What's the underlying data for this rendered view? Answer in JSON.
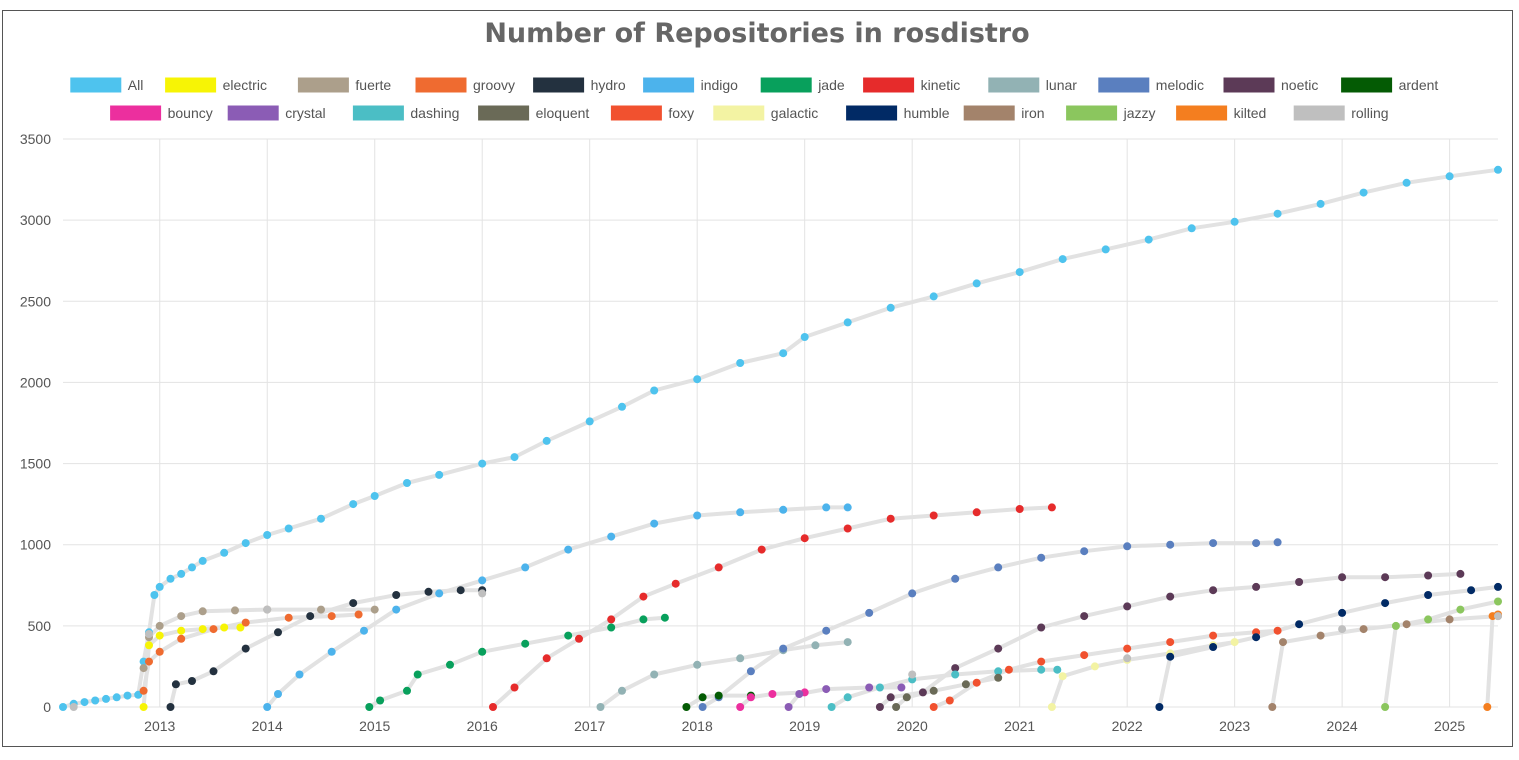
{
  "chart_data": {
    "type": "scatter",
    "title": "Number of Repositories in rosdistro",
    "xlabel": "",
    "ylabel": "",
    "x_ticks": [
      "2013",
      "2014",
      "2015",
      "2016",
      "2017",
      "2018",
      "2019",
      "2020",
      "2021",
      "2022",
      "2023",
      "2024",
      "2025"
    ],
    "y_ticks": [
      0,
      500,
      1000,
      1500,
      2000,
      2500,
      3000,
      3500
    ],
    "xlim": [
      2012.1,
      2025.45
    ],
    "ylim": [
      0,
      3500
    ],
    "grid": true,
    "legend_position": "top",
    "series": [
      {
        "name": "All",
        "color": "#4ec3ee",
        "points": [
          [
            2012.1,
            0
          ],
          [
            2012.2,
            20
          ],
          [
            2012.3,
            30
          ],
          [
            2012.4,
            40
          ],
          [
            2012.5,
            50
          ],
          [
            2012.6,
            60
          ],
          [
            2012.7,
            70
          ],
          [
            2012.8,
            75
          ],
          [
            2012.85,
            280
          ],
          [
            2012.9,
            460
          ],
          [
            2012.95,
            690
          ],
          [
            2013.0,
            740
          ],
          [
            2013.1,
            790
          ],
          [
            2013.2,
            820
          ],
          [
            2013.3,
            860
          ],
          [
            2013.4,
            900
          ],
          [
            2013.6,
            950
          ],
          [
            2013.8,
            1010
          ],
          [
            2014.0,
            1060
          ],
          [
            2014.2,
            1100
          ],
          [
            2014.5,
            1160
          ],
          [
            2014.8,
            1250
          ],
          [
            2015.0,
            1300
          ],
          [
            2015.3,
            1380
          ],
          [
            2015.6,
            1430
          ],
          [
            2016.0,
            1500
          ],
          [
            2016.3,
            1540
          ],
          [
            2016.6,
            1640
          ],
          [
            2017.0,
            1760
          ],
          [
            2017.3,
            1850
          ],
          [
            2017.6,
            1950
          ],
          [
            2018.0,
            2020
          ],
          [
            2018.4,
            2120
          ],
          [
            2018.8,
            2180
          ],
          [
            2019.0,
            2280
          ],
          [
            2019.4,
            2370
          ],
          [
            2019.8,
            2460
          ],
          [
            2020.2,
            2530
          ],
          [
            2020.6,
            2610
          ],
          [
            2021.0,
            2680
          ],
          [
            2021.4,
            2760
          ],
          [
            2021.8,
            2820
          ],
          [
            2022.2,
            2880
          ],
          [
            2022.6,
            2950
          ],
          [
            2023.0,
            2990
          ],
          [
            2023.4,
            3040
          ],
          [
            2023.8,
            3100
          ],
          [
            2024.2,
            3170
          ],
          [
            2024.6,
            3230
          ],
          [
            2025.0,
            3270
          ],
          [
            2025.45,
            3310
          ]
        ]
      },
      {
        "name": "electric",
        "color": "#f7f405",
        "points": [
          [
            2012.85,
            0
          ],
          [
            2012.9,
            380
          ],
          [
            2013.0,
            440
          ],
          [
            2013.2,
            470
          ],
          [
            2013.4,
            480
          ],
          [
            2013.6,
            490
          ],
          [
            2013.75,
            490
          ]
        ]
      },
      {
        "name": "fuerte",
        "color": "#ac9f8b",
        "points": [
          [
            2012.85,
            240
          ],
          [
            2012.9,
            430
          ],
          [
            2013.0,
            500
          ],
          [
            2013.2,
            560
          ],
          [
            2013.4,
            590
          ],
          [
            2013.7,
            595
          ],
          [
            2014.0,
            600
          ],
          [
            2014.5,
            600
          ],
          [
            2015.0,
            600
          ]
        ]
      },
      {
        "name": "groovy",
        "color": "#ef6b30",
        "points": [
          [
            2012.85,
            100
          ],
          [
            2012.9,
            280
          ],
          [
            2013.0,
            340
          ],
          [
            2013.2,
            420
          ],
          [
            2013.5,
            480
          ],
          [
            2013.8,
            520
          ],
          [
            2014.2,
            550
          ],
          [
            2014.6,
            560
          ],
          [
            2014.85,
            570
          ]
        ]
      },
      {
        "name": "hydro",
        "color": "#23313f",
        "points": [
          [
            2013.1,
            0
          ],
          [
            2013.15,
            140
          ],
          [
            2013.3,
            160
          ],
          [
            2013.5,
            220
          ],
          [
            2013.8,
            360
          ],
          [
            2014.1,
            460
          ],
          [
            2014.4,
            560
          ],
          [
            2014.8,
            640
          ],
          [
            2015.2,
            690
          ],
          [
            2015.5,
            710
          ],
          [
            2015.8,
            720
          ],
          [
            2016.0,
            720
          ]
        ]
      },
      {
        "name": "indigo",
        "color": "#4cb3ec",
        "points": [
          [
            2014.0,
            0
          ],
          [
            2014.1,
            80
          ],
          [
            2014.3,
            200
          ],
          [
            2014.6,
            340
          ],
          [
            2014.9,
            470
          ],
          [
            2015.2,
            600
          ],
          [
            2015.6,
            700
          ],
          [
            2016.0,
            780
          ],
          [
            2016.4,
            860
          ],
          [
            2016.8,
            970
          ],
          [
            2017.2,
            1050
          ],
          [
            2017.6,
            1130
          ],
          [
            2018.0,
            1180
          ],
          [
            2018.4,
            1200
          ],
          [
            2018.8,
            1215
          ],
          [
            2019.2,
            1230
          ],
          [
            2019.4,
            1230
          ]
        ]
      },
      {
        "name": "jade",
        "color": "#08a05c",
        "points": [
          [
            2014.95,
            0
          ],
          [
            2015.05,
            40
          ],
          [
            2015.3,
            100
          ],
          [
            2015.4,
            200
          ],
          [
            2015.7,
            260
          ],
          [
            2016.0,
            340
          ],
          [
            2016.4,
            390
          ],
          [
            2016.8,
            440
          ],
          [
            2017.2,
            490
          ],
          [
            2017.5,
            540
          ],
          [
            2017.7,
            550
          ]
        ]
      },
      {
        "name": "kinetic",
        "color": "#e62b2b",
        "points": [
          [
            2016.1,
            0
          ],
          [
            2016.3,
            120
          ],
          [
            2016.6,
            300
          ],
          [
            2016.9,
            420
          ],
          [
            2017.2,
            540
          ],
          [
            2017.5,
            680
          ],
          [
            2017.8,
            760
          ],
          [
            2018.2,
            860
          ],
          [
            2018.6,
            970
          ],
          [
            2019.0,
            1040
          ],
          [
            2019.4,
            1100
          ],
          [
            2019.8,
            1160
          ],
          [
            2020.2,
            1180
          ],
          [
            2020.6,
            1200
          ],
          [
            2021.0,
            1220
          ],
          [
            2021.3,
            1230
          ]
        ]
      },
      {
        "name": "lunar",
        "color": "#92b2b4",
        "points": [
          [
            2017.1,
            0
          ],
          [
            2017.3,
            100
          ],
          [
            2017.6,
            200
          ],
          [
            2018.0,
            260
          ],
          [
            2018.4,
            300
          ],
          [
            2018.8,
            350
          ],
          [
            2019.1,
            380
          ],
          [
            2019.4,
            400
          ]
        ]
      },
      {
        "name": "melodic",
        "color": "#5a7fbf",
        "points": [
          [
            2018.05,
            0
          ],
          [
            2018.2,
            60
          ],
          [
            2018.5,
            220
          ],
          [
            2018.8,
            360
          ],
          [
            2019.2,
            470
          ],
          [
            2019.6,
            580
          ],
          [
            2020.0,
            700
          ],
          [
            2020.4,
            790
          ],
          [
            2020.8,
            860
          ],
          [
            2021.2,
            920
          ],
          [
            2021.6,
            960
          ],
          [
            2022.0,
            990
          ],
          [
            2022.4,
            1000
          ],
          [
            2022.8,
            1010
          ],
          [
            2023.2,
            1010
          ],
          [
            2023.4,
            1015
          ]
        ]
      },
      {
        "name": "noetic",
        "color": "#5c3a57",
        "points": [
          [
            2019.7,
            0
          ],
          [
            2019.8,
            60
          ],
          [
            2020.1,
            90
          ],
          [
            2020.4,
            240
          ],
          [
            2020.8,
            360
          ],
          [
            2021.2,
            490
          ],
          [
            2021.6,
            560
          ],
          [
            2022.0,
            620
          ],
          [
            2022.4,
            680
          ],
          [
            2022.8,
            720
          ],
          [
            2023.2,
            740
          ],
          [
            2023.6,
            770
          ],
          [
            2024.0,
            800
          ],
          [
            2024.4,
            800
          ],
          [
            2024.8,
            810
          ],
          [
            2025.1,
            820
          ]
        ]
      },
      {
        "name": "ardent",
        "color": "#045b04",
        "points": [
          [
            2017.9,
            0
          ],
          [
            2018.05,
            60
          ],
          [
            2018.2,
            70
          ],
          [
            2018.5,
            70
          ]
        ]
      },
      {
        "name": "bouncy",
        "color": "#ec2f9e",
        "points": [
          [
            2018.4,
            0
          ],
          [
            2018.5,
            60
          ],
          [
            2018.7,
            80
          ],
          [
            2019.0,
            90
          ]
        ]
      },
      {
        "name": "crystal",
        "color": "#8b5cb5",
        "points": [
          [
            2018.85,
            0
          ],
          [
            2018.95,
            80
          ],
          [
            2019.2,
            110
          ],
          [
            2019.6,
            120
          ],
          [
            2019.9,
            120
          ]
        ]
      },
      {
        "name": "dashing",
        "color": "#4bbec5",
        "points": [
          [
            2019.25,
            0
          ],
          [
            2019.4,
            60
          ],
          [
            2019.7,
            120
          ],
          [
            2020.0,
            170
          ],
          [
            2020.4,
            200
          ],
          [
            2020.8,
            220
          ],
          [
            2021.2,
            230
          ],
          [
            2021.35,
            230
          ]
        ]
      },
      {
        "name": "eloquent",
        "color": "#6a6a57",
        "points": [
          [
            2019.85,
            0
          ],
          [
            2019.95,
            60
          ],
          [
            2020.2,
            100
          ],
          [
            2020.5,
            140
          ],
          [
            2020.8,
            180
          ]
        ]
      },
      {
        "name": "foxy",
        "color": "#f1512f",
        "points": [
          [
            2020.2,
            0
          ],
          [
            2020.35,
            40
          ],
          [
            2020.6,
            150
          ],
          [
            2020.9,
            230
          ],
          [
            2021.2,
            280
          ],
          [
            2021.6,
            320
          ],
          [
            2022.0,
            360
          ],
          [
            2022.4,
            400
          ],
          [
            2022.8,
            440
          ],
          [
            2023.2,
            460
          ],
          [
            2023.4,
            470
          ]
        ]
      },
      {
        "name": "galactic",
        "color": "#f3f3a3",
        "points": [
          [
            2021.3,
            0
          ],
          [
            2021.4,
            190
          ],
          [
            2021.7,
            250
          ],
          [
            2022.0,
            290
          ],
          [
            2022.4,
            330
          ],
          [
            2022.8,
            380
          ],
          [
            2023.0,
            400
          ]
        ]
      },
      {
        "name": "humble",
        "color": "#012a65",
        "points": [
          [
            2022.3,
            0
          ],
          [
            2022.4,
            310
          ],
          [
            2022.8,
            370
          ],
          [
            2023.2,
            430
          ],
          [
            2023.6,
            510
          ],
          [
            2024.0,
            580
          ],
          [
            2024.4,
            640
          ],
          [
            2024.8,
            690
          ],
          [
            2025.2,
            720
          ],
          [
            2025.45,
            740
          ]
        ]
      },
      {
        "name": "iron",
        "color": "#a3836b",
        "points": [
          [
            2023.35,
            0
          ],
          [
            2023.45,
            400
          ],
          [
            2023.8,
            440
          ],
          [
            2024.2,
            480
          ],
          [
            2024.6,
            510
          ],
          [
            2025.0,
            540
          ],
          [
            2025.45,
            560
          ]
        ]
      },
      {
        "name": "jazzy",
        "color": "#8bc65e",
        "points": [
          [
            2024.4,
            0
          ],
          [
            2024.5,
            500
          ],
          [
            2024.8,
            540
          ],
          [
            2025.1,
            600
          ],
          [
            2025.45,
            650
          ]
        ]
      },
      {
        "name": "kilted",
        "color": "#f47e1f",
        "points": [
          [
            2025.35,
            0
          ],
          [
            2025.4,
            560
          ],
          [
            2025.45,
            570
          ]
        ]
      },
      {
        "name": "rolling",
        "color": "#bfbfbf",
        "points": [
          [
            2012.2,
            0
          ],
          [
            2012.9,
            450
          ],
          [
            2014.0,
            600
          ],
          [
            2016.0,
            700
          ],
          [
            2020.0,
            200
          ],
          [
            2022.0,
            300
          ],
          [
            2024.0,
            480
          ],
          [
            2025.45,
            560
          ]
        ]
      }
    ]
  }
}
